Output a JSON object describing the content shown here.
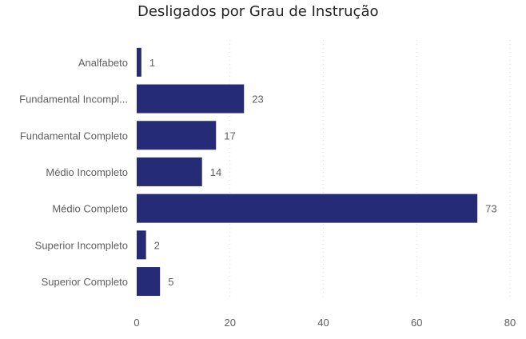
{
  "chart_data": {
    "type": "bar",
    "orientation": "horizontal",
    "title": "Desligados por Grau de Instrução",
    "categories": [
      "Analfabeto",
      "Fundamental Incompl...",
      "Fundamental Completo",
      "Médio Incompleto",
      "Médio Completo",
      "Superior Incompleto",
      "Superior Completo"
    ],
    "values": [
      1,
      23,
      17,
      14,
      73,
      2,
      5
    ],
    "xlim": [
      0,
      80
    ],
    "xticks": [
      0,
      20,
      40,
      60,
      80
    ],
    "grid": true,
    "data_labels": true,
    "bar_color": "#252B76"
  }
}
